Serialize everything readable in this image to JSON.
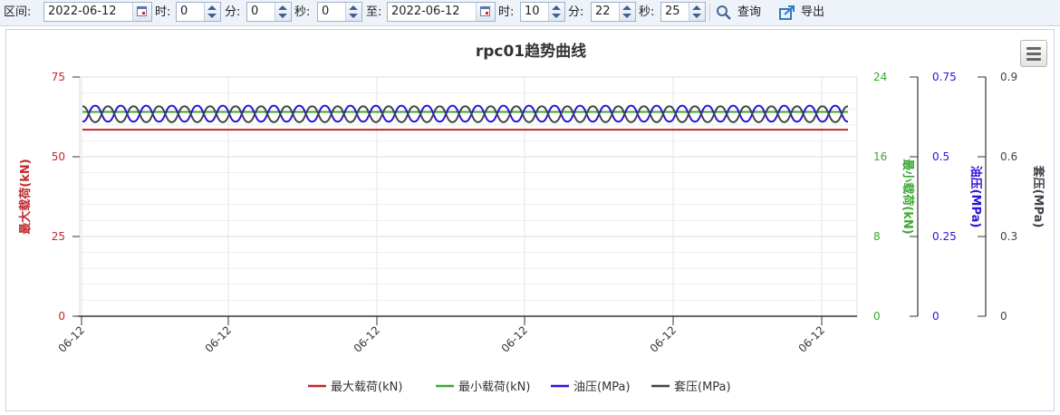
{
  "toolbar": {
    "range_label": "区间:",
    "start_date": "2022-06-12",
    "hour_label": "时:",
    "start_hour": "0",
    "minute_label": "分:",
    "start_minute": "0",
    "second_label": "秒:",
    "start_second": "0",
    "to_label": "至:",
    "end_date": "2022-06-12",
    "end_hour": "10",
    "end_minute": "22",
    "end_second": "25",
    "query_label": "查询",
    "export_label": "导出"
  },
  "colors": {
    "max_load": "#c0282d",
    "min_load": "#3aa832",
    "oil_pressure": "#2a14d8",
    "casing_pressure": "#434348"
  },
  "chart_data": {
    "type": "line",
    "title": "rpc01趋势曲线",
    "x_tick_labels": [
      "06-12",
      "06-12",
      "06-12",
      "06-12",
      "06-12",
      "06-12"
    ],
    "series": [
      {
        "name": "最大载荷(kN)",
        "axis": "left",
        "pattern": "flat",
        "values": [
          58.5
        ]
      },
      {
        "name": "最小载荷(kN)",
        "axis": "right1",
        "pattern": "flat",
        "values": [
          20.5
        ]
      },
      {
        "name": "油压(MPa)",
        "axis": "right2",
        "pattern": "oscillating",
        "values": [
          0.61,
          0.66
        ]
      },
      {
        "name": "套压(MPa)",
        "axis": "right3",
        "pattern": "oscillating",
        "values": [
          0.79,
          0.73
        ]
      }
    ],
    "y_axes": [
      {
        "id": "left",
        "label": "最大载荷(kN)",
        "ticks": [
          "0",
          "25",
          "50",
          "75"
        ],
        "min": 0,
        "max": 75
      },
      {
        "id": "right1",
        "label": "最小载荷(kN)",
        "ticks": [
          "0",
          "8",
          "16",
          "24"
        ],
        "min": 0,
        "max": 24
      },
      {
        "id": "right2",
        "label": "油压(MPa)",
        "ticks": [
          "0",
          "0.25",
          "0.5",
          "0.75"
        ],
        "min": 0,
        "max": 0.75
      },
      {
        "id": "right3",
        "label": "套压(MPa)",
        "ticks": [
          "0",
          "0.3",
          "0.6",
          "0.9"
        ],
        "min": 0,
        "max": 0.9
      }
    ],
    "legend_position": "bottom",
    "grid": true
  }
}
